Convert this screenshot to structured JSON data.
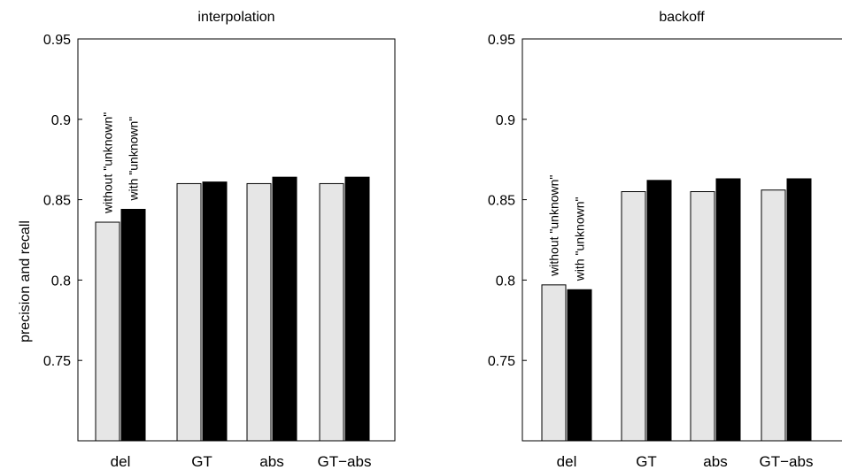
{
  "chart_data": [
    {
      "type": "bar",
      "title": "interpolation",
      "ylabel": "precision and recall",
      "xlabel": "",
      "ylim": [
        0.7,
        0.95
      ],
      "yticks": [
        "0.75",
        "0.8",
        "0.85",
        "0.9",
        "0.95"
      ],
      "categories": [
        "del",
        "GT",
        "abs",
        "GT−abs"
      ],
      "series": [
        {
          "name": "without \"unknown\"",
          "color": "#e6e6e6",
          "values": [
            0.836,
            0.86,
            0.86,
            0.86
          ]
        },
        {
          "name": "with \"unknown\"",
          "color": "#000000",
          "values": [
            0.844,
            0.861,
            0.864,
            0.864
          ]
        }
      ],
      "annotations": [
        "without  \"unknown\"",
        "with  \"unknown\""
      ],
      "grid": false
    },
    {
      "type": "bar",
      "title": "backoff",
      "ylabel": "",
      "xlabel": "",
      "ylim": [
        0.7,
        0.95
      ],
      "yticks": [
        "0.75",
        "0.8",
        "0.85",
        "0.9",
        "0.95"
      ],
      "categories": [
        "del",
        "GT",
        "abs",
        "GT−abs"
      ],
      "series": [
        {
          "name": "without \"unknown\"",
          "color": "#e6e6e6",
          "values": [
            0.797,
            0.855,
            0.855,
            0.856
          ]
        },
        {
          "name": "with \"unknown\"",
          "color": "#000000",
          "values": [
            0.794,
            0.862,
            0.863,
            0.863
          ]
        }
      ],
      "annotations": [
        "without  \"unknown\"",
        "with  \"unknown\""
      ],
      "grid": false
    }
  ]
}
